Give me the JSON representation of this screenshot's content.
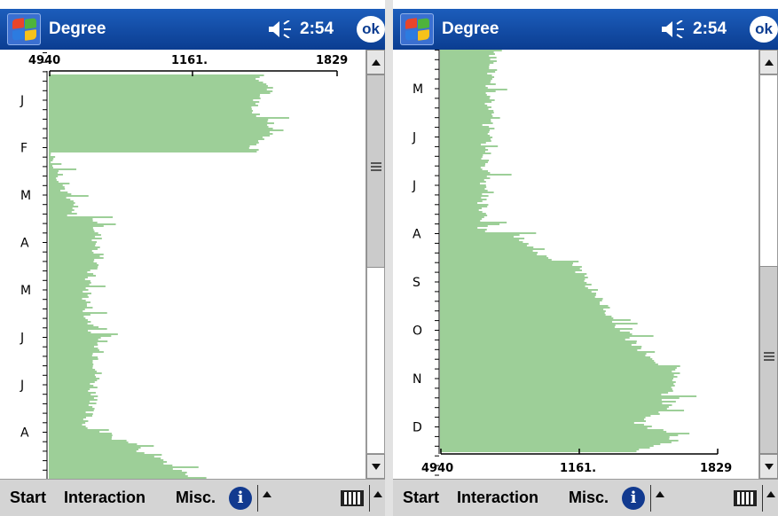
{
  "screens": [
    {
      "title": "Degree",
      "time": "2:54",
      "ok_label": "ok",
      "axis": {
        "position": "top",
        "labels": [
          "4940",
          "1161.",
          "1829"
        ]
      },
      "month_labels": [
        "J",
        "F",
        "M",
        "A",
        "M",
        "J",
        "J",
        "A"
      ],
      "scrollbar": {
        "thumb_start_fraction": 0.0,
        "thumb_end_fraction": 0.52
      },
      "menu": [
        "Start",
        "Interaction",
        "Misc."
      ]
    },
    {
      "title": "Degree",
      "time": "2:54",
      "ok_label": "ok",
      "axis": {
        "position": "bottom",
        "labels": [
          "4940",
          "1161.",
          "1829"
        ]
      },
      "month_labels": [
        "M",
        "J",
        "J",
        "A",
        "S",
        "O",
        "N",
        "D"
      ],
      "scrollbar": {
        "thumb_start_fraction": 0.55,
        "thumb_end_fraction": 1.0
      },
      "menu": [
        "Start",
        "Interaction",
        "Misc."
      ]
    }
  ],
  "colors": {
    "titlebar": "#0b3d91",
    "bars": "#9dcf98",
    "taskbar": "#d4d4d4"
  },
  "icons": [
    "windows-start-icon",
    "speaker-icon",
    "ok-button-icon",
    "info-icon",
    "keyboard-icon",
    "caret-up-icon"
  ]
}
